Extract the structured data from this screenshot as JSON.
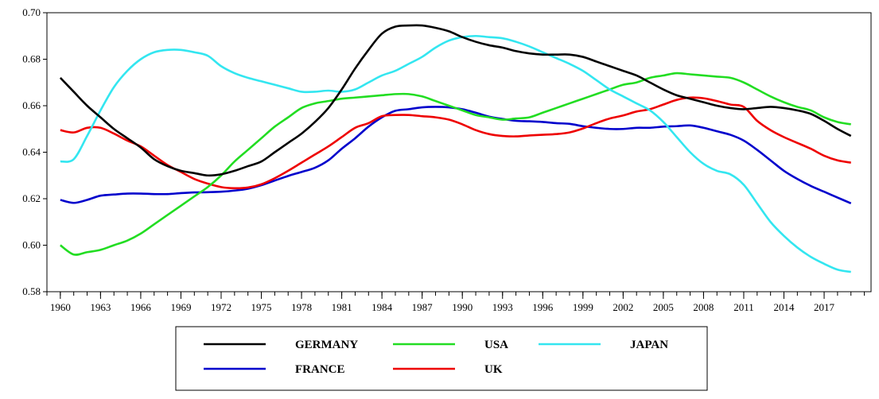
{
  "chart_data": {
    "type": "line",
    "title": "",
    "xlabel": "",
    "ylabel": "",
    "xlim": [
      1959,
      2020.5
    ],
    "ylim": [
      0.58,
      0.7
    ],
    "yticks": [
      0.58,
      0.6,
      0.62,
      0.64,
      0.66,
      0.68,
      0.7
    ],
    "ytick_labels": [
      "0.58",
      "0.60",
      "0.62",
      "0.64",
      "0.66",
      "0.68",
      "0.70"
    ],
    "xticks": [
      1960,
      1963,
      1966,
      1969,
      1972,
      1975,
      1978,
      1981,
      1984,
      1987,
      1990,
      1993,
      1996,
      1999,
      2002,
      2005,
      2008,
      2011,
      2014,
      2017
    ],
    "xtick_labels": [
      "1960",
      "1963",
      "1966",
      "1969",
      "1972",
      "1975",
      "1978",
      "1981",
      "1984",
      "1987",
      "1990",
      "1993",
      "1996",
      "1999",
      "2002",
      "2005",
      "2008",
      "2011",
      "2014",
      "2017"
    ],
    "grid": false,
    "legend_position": "bottom",
    "x": [
      1960,
      1961,
      1962,
      1963,
      1964,
      1965,
      1966,
      1967,
      1968,
      1969,
      1970,
      1971,
      1972,
      1973,
      1974,
      1975,
      1976,
      1977,
      1978,
      1979,
      1980,
      1981,
      1982,
      1983,
      1984,
      1985,
      1986,
      1987,
      1988,
      1989,
      1990,
      1991,
      1992,
      1993,
      1994,
      1995,
      1996,
      1997,
      1998,
      1999,
      2000,
      2001,
      2002,
      2003,
      2004,
      2005,
      2006,
      2007,
      2008,
      2009,
      2010,
      2011,
      2012,
      2013,
      2014,
      2015,
      2016,
      2017,
      2018,
      2019
    ],
    "series": [
      {
        "name": "GERMANY",
        "color": "#000000",
        "values": [
          0.672,
          0.666,
          0.66,
          0.655,
          0.65,
          0.646,
          0.642,
          0.637,
          0.634,
          0.632,
          0.631,
          0.63,
          0.6305,
          0.632,
          0.634,
          0.636,
          0.64,
          0.644,
          0.648,
          0.653,
          0.659,
          0.667,
          0.676,
          0.684,
          0.691,
          0.694,
          0.6945,
          0.6945,
          0.6935,
          0.692,
          0.6895,
          0.6875,
          0.686,
          0.685,
          0.6835,
          0.6825,
          0.682,
          0.682,
          0.682,
          0.681,
          0.679,
          0.677,
          0.675,
          0.673,
          0.67,
          0.667,
          0.6645,
          0.663,
          0.6615,
          0.66,
          0.659,
          0.6585,
          0.659,
          0.6595,
          0.659,
          0.658,
          0.6565,
          0.6535,
          0.65,
          0.647
        ]
      },
      {
        "name": "USA",
        "color": "#22dd22",
        "values": [
          0.6,
          0.596,
          0.597,
          0.598,
          0.6,
          0.602,
          0.605,
          0.609,
          0.613,
          0.617,
          0.621,
          0.625,
          0.63,
          0.636,
          0.641,
          0.646,
          0.651,
          0.655,
          0.659,
          0.661,
          0.662,
          0.663,
          0.6635,
          0.664,
          0.6645,
          0.665,
          0.665,
          0.664,
          0.662,
          0.66,
          0.658,
          0.656,
          0.655,
          0.654,
          0.6545,
          0.655,
          0.657,
          0.659,
          0.661,
          0.663,
          0.665,
          0.667,
          0.669,
          0.67,
          0.672,
          0.673,
          0.674,
          0.6735,
          0.673,
          0.6725,
          0.672,
          0.67,
          0.667,
          0.664,
          0.6615,
          0.6595,
          0.658,
          0.655,
          0.653,
          0.652
        ]
      },
      {
        "name": "JAPAN",
        "color": "#33e6f0",
        "values": [
          0.636,
          0.637,
          0.647,
          0.658,
          0.668,
          0.675,
          0.68,
          0.683,
          0.684,
          0.684,
          0.683,
          0.6815,
          0.677,
          0.674,
          0.672,
          0.6705,
          0.669,
          0.6675,
          0.666,
          0.666,
          0.6665,
          0.666,
          0.667,
          0.67,
          0.673,
          0.675,
          0.678,
          0.681,
          0.685,
          0.688,
          0.6895,
          0.69,
          0.6895,
          0.689,
          0.6875,
          0.6855,
          0.683,
          0.6805,
          0.678,
          0.675,
          0.671,
          0.667,
          0.664,
          0.661,
          0.658,
          0.653,
          0.6465,
          0.64,
          0.635,
          0.632,
          0.6305,
          0.626,
          0.618,
          0.61,
          0.604,
          0.599,
          0.595,
          0.592,
          0.5895,
          0.5885
        ]
      },
      {
        "name": "FRANCE",
        "color": "#0000cc",
        "values": [
          0.6195,
          0.6182,
          0.6195,
          0.6213,
          0.6218,
          0.6222,
          0.6222,
          0.622,
          0.622,
          0.6224,
          0.6227,
          0.6228,
          0.623,
          0.6235,
          0.6243,
          0.6258,
          0.6278,
          0.6298,
          0.6315,
          0.6333,
          0.6365,
          0.6415,
          0.646,
          0.651,
          0.655,
          0.6578,
          0.6585,
          0.6593,
          0.6595,
          0.6593,
          0.6585,
          0.657,
          0.6553,
          0.6543,
          0.6535,
          0.6533,
          0.653,
          0.6525,
          0.6522,
          0.6512,
          0.6505,
          0.65,
          0.65,
          0.6505,
          0.6505,
          0.651,
          0.6512,
          0.6515,
          0.6505,
          0.649,
          0.6475,
          0.645,
          0.641,
          0.6365,
          0.632,
          0.6285,
          0.6255,
          0.623,
          0.6205,
          0.618
        ]
      },
      {
        "name": "UK",
        "color": "#ee0000",
        "values": [
          0.6495,
          0.6485,
          0.6505,
          0.6505,
          0.648,
          0.645,
          0.6425,
          0.6385,
          0.6345,
          0.6315,
          0.6285,
          0.6265,
          0.625,
          0.6245,
          0.6248,
          0.6262,
          0.6288,
          0.632,
          0.6355,
          0.639,
          0.6425,
          0.6465,
          0.6505,
          0.6525,
          0.6555,
          0.656,
          0.656,
          0.6555,
          0.655,
          0.654,
          0.652,
          0.6495,
          0.6478,
          0.647,
          0.6468,
          0.6472,
          0.6475,
          0.6478,
          0.6485,
          0.6502,
          0.6525,
          0.6545,
          0.6558,
          0.6575,
          0.6585,
          0.6605,
          0.6625,
          0.6635,
          0.6632,
          0.662,
          0.6605,
          0.6595,
          0.6535,
          0.6495,
          0.6465,
          0.644,
          0.6415,
          0.6385,
          0.6365,
          0.6355
        ]
      }
    ],
    "legend_layout": [
      [
        "GERMANY",
        "USA",
        "JAPAN"
      ],
      [
        "FRANCE",
        "UK"
      ]
    ]
  }
}
